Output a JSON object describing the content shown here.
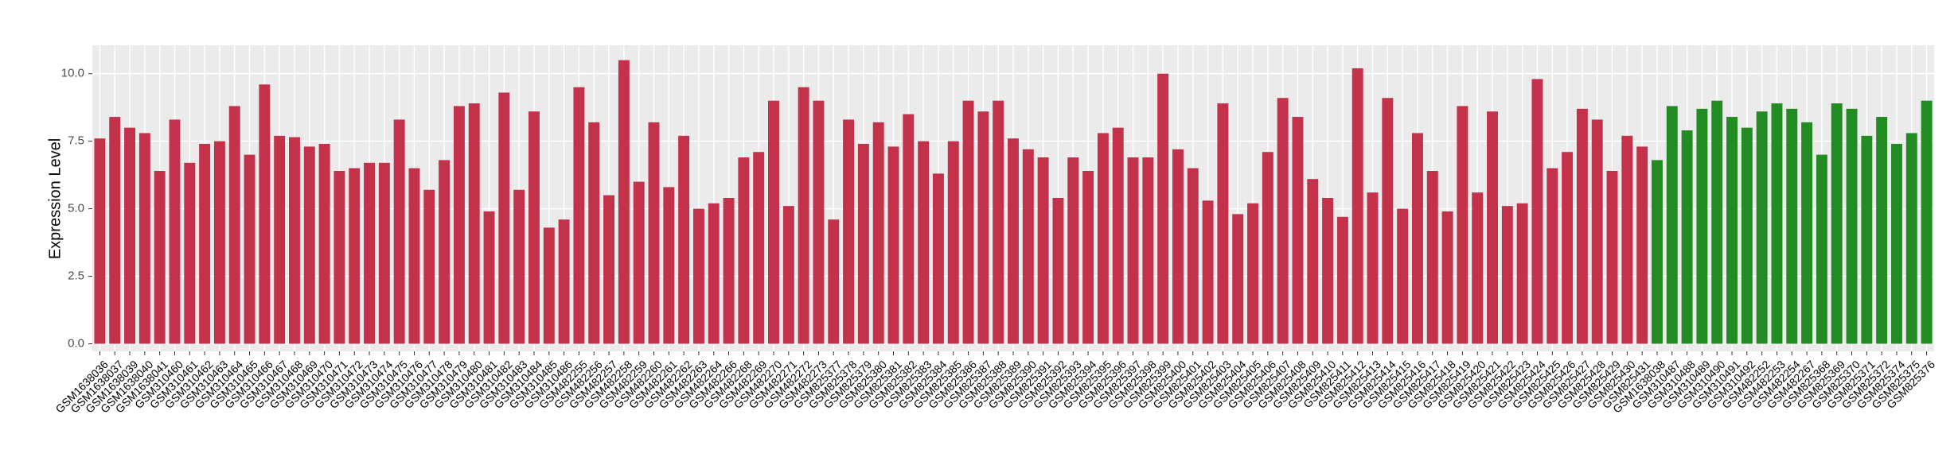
{
  "chart_data": {
    "type": "bar",
    "y_label": "Expression Level",
    "categories": [
      "GSM1638036",
      "GSM1638037",
      "GSM1638039",
      "GSM1638040",
      "GSM1638041",
      "GSM310460",
      "GSM310461",
      "GSM310462",
      "GSM310463",
      "GSM310464",
      "GSM310465",
      "GSM310466",
      "GSM310467",
      "GSM310468",
      "GSM310469",
      "GSM310470",
      "GSM310471",
      "GSM310472",
      "GSM310473",
      "GSM310474",
      "GSM310475",
      "GSM310476",
      "GSM310477",
      "GSM310478",
      "GSM310479",
      "GSM310480",
      "GSM310481",
      "GSM310482",
      "GSM310483",
      "GSM310484",
      "GSM310485",
      "GSM310486",
      "GSM482255",
      "GSM482256",
      "GSM482257",
      "GSM482258",
      "GSM482259",
      "GSM482260",
      "GSM482261",
      "GSM482262",
      "GSM482263",
      "GSM482264",
      "GSM482266",
      "GSM482268",
      "GSM482269",
      "GSM482270",
      "GSM482271",
      "GSM482272",
      "GSM482273",
      "GSM825377",
      "GSM825378",
      "GSM825379",
      "GSM825380",
      "GSM825381",
      "GSM825382",
      "GSM825383",
      "GSM825384",
      "GSM825385",
      "GSM825386",
      "GSM825387",
      "GSM825388",
      "GSM825389",
      "GSM825390",
      "GSM825391",
      "GSM825392",
      "GSM825393",
      "GSM825394",
      "GSM825395",
      "GSM825396",
      "GSM825397",
      "GSM825398",
      "GSM825399",
      "GSM825400",
      "GSM825401",
      "GSM825402",
      "GSM825403",
      "GSM825404",
      "GSM825405",
      "GSM825406",
      "GSM825407",
      "GSM825408",
      "GSM825409",
      "GSM825410",
      "GSM825411",
      "GSM825412",
      "GSM825413",
      "GSM825414",
      "GSM825415",
      "GSM825416",
      "GSM825417",
      "GSM825418",
      "GSM825419",
      "GSM825420",
      "GSM825421",
      "GSM825422",
      "GSM825423",
      "GSM825424",
      "GSM825425",
      "GSM825426",
      "GSM825427",
      "GSM825428",
      "GSM825429",
      "GSM825430",
      "GSM825431",
      "GSM1638038",
      "GSM310487",
      "GSM310488",
      "GSM310489",
      "GSM310490",
      "GSM310491",
      "GSM310492",
      "GSM482252",
      "GSM482253",
      "GSM482254",
      "GSM482267",
      "GSM825368",
      "GSM825369",
      "GSM825370",
      "GSM825371",
      "GSM825372",
      "GSM825374",
      "GSM825375",
      "GSM825376"
    ],
    "values": [
      7.6,
      8.4,
      8.0,
      7.8,
      6.4,
      8.3,
      6.7,
      7.4,
      7.5,
      8.8,
      7.0,
      9.6,
      7.7,
      7.65,
      7.3,
      7.4,
      6.4,
      6.5,
      6.7,
      6.7,
      8.3,
      6.5,
      5.7,
      6.8,
      8.8,
      8.9,
      4.9,
      9.3,
      5.7,
      8.6,
      4.3,
      4.6,
      9.5,
      8.2,
      5.5,
      10.5,
      6.0,
      8.2,
      5.8,
      7.7,
      5.0,
      5.2,
      5.4,
      6.9,
      7.1,
      9.0,
      5.1,
      9.5,
      9.0,
      4.6,
      8.3,
      7.4,
      8.2,
      7.3,
      8.5,
      7.5,
      6.3,
      7.5,
      9.0,
      8.6,
      9.0,
      7.6,
      7.2,
      6.9,
      5.4,
      6.9,
      6.4,
      7.8,
      8.0,
      6.9,
      6.9,
      10.0,
      7.2,
      6.5,
      5.3,
      8.9,
      4.8,
      5.2,
      7.1,
      9.1,
      8.4,
      6.1,
      5.4,
      4.7,
      10.2,
      5.6,
      9.1,
      5.0,
      7.8,
      6.4,
      4.9,
      8.8,
      5.6,
      8.6,
      5.1,
      5.2,
      9.8,
      6.5,
      7.1,
      8.7,
      8.3,
      6.4,
      7.7,
      7.3,
      6.8,
      8.8,
      7.9,
      8.7,
      9.0,
      8.4,
      8.0,
      8.6,
      8.9,
      8.7,
      8.2,
      7.0,
      8.9,
      8.7,
      7.7,
      8.4,
      7.4,
      7.8,
      9.0
    ],
    "colors": [
      "#c3314b",
      "#c3314b",
      "#c3314b",
      "#c3314b",
      "#c3314b",
      "#c3314b",
      "#c3314b",
      "#c3314b",
      "#c3314b",
      "#c3314b",
      "#c3314b",
      "#c3314b",
      "#c3314b",
      "#c3314b",
      "#c3314b",
      "#c3314b",
      "#c3314b",
      "#c3314b",
      "#c3314b",
      "#c3314b",
      "#c3314b",
      "#c3314b",
      "#c3314b",
      "#c3314b",
      "#c3314b",
      "#c3314b",
      "#c3314b",
      "#c3314b",
      "#c3314b",
      "#c3314b",
      "#c3314b",
      "#c3314b",
      "#c3314b",
      "#c3314b",
      "#c3314b",
      "#c3314b",
      "#c3314b",
      "#c3314b",
      "#c3314b",
      "#c3314b",
      "#c3314b",
      "#c3314b",
      "#c3314b",
      "#c3314b",
      "#c3314b",
      "#c3314b",
      "#c3314b",
      "#c3314b",
      "#c3314b",
      "#c3314b",
      "#c3314b",
      "#c3314b",
      "#c3314b",
      "#c3314b",
      "#c3314b",
      "#c3314b",
      "#c3314b",
      "#c3314b",
      "#c3314b",
      "#c3314b",
      "#c3314b",
      "#c3314b",
      "#c3314b",
      "#c3314b",
      "#c3314b",
      "#c3314b",
      "#c3314b",
      "#c3314b",
      "#c3314b",
      "#c3314b",
      "#c3314b",
      "#c3314b",
      "#c3314b",
      "#c3314b",
      "#c3314b",
      "#c3314b",
      "#c3314b",
      "#c3314b",
      "#c3314b",
      "#c3314b",
      "#c3314b",
      "#c3314b",
      "#c3314b",
      "#c3314b",
      "#c3314b",
      "#c3314b",
      "#c3314b",
      "#c3314b",
      "#c3314b",
      "#c3314b",
      "#c3314b",
      "#c3314b",
      "#c3314b",
      "#c3314b",
      "#c3314b",
      "#c3314b",
      "#c3314b",
      "#c3314b",
      "#c3314b",
      "#c3314b",
      "#c3314b",
      "#c3314b",
      "#c3314b",
      "#c3314b",
      "#228b22",
      "#228b22",
      "#228b22",
      "#228b22",
      "#228b22",
      "#228b22",
      "#228b22",
      "#228b22",
      "#228b22",
      "#228b22",
      "#228b22",
      "#228b22",
      "#228b22",
      "#228b22",
      "#228b22",
      "#228b22",
      "#228b22",
      "#228b22",
      "#228b22"
    ],
    "ylim": [
      -0.28,
      11.05
    ],
    "yticks": [
      {
        "value": 0,
        "label": "0.0"
      },
      {
        "value": 2.5,
        "label": "2.5"
      },
      {
        "value": 5,
        "label": "5.0"
      },
      {
        "value": 7.5,
        "label": "7.5"
      },
      {
        "value": 10,
        "label": "10.0"
      }
    ],
    "grid": true
  }
}
